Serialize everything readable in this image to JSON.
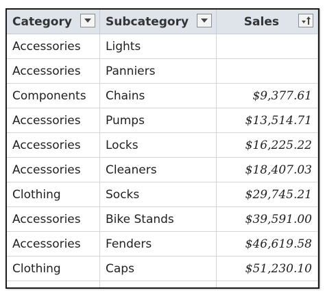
{
  "table": {
    "columns": [
      {
        "label": "Category",
        "control_icon": "filter-dropdown-icon"
      },
      {
        "label": "Subcategory",
        "control_icon": "filter-dropdown-icon"
      },
      {
        "label": "Sales",
        "control_icon": "sort-ascending-icon"
      }
    ],
    "rows": [
      {
        "category": "Accessories",
        "subcategory": "Lights",
        "sales": ""
      },
      {
        "category": "Accessories",
        "subcategory": "Panniers",
        "sales": ""
      },
      {
        "category": "Components",
        "subcategory": "Chains",
        "sales": "$9,377.61"
      },
      {
        "category": "Accessories",
        "subcategory": "Pumps",
        "sales": "$13,514.71"
      },
      {
        "category": "Accessories",
        "subcategory": "Locks",
        "sales": "$16,225.22"
      },
      {
        "category": "Accessories",
        "subcategory": "Cleaners",
        "sales": "$18,407.03"
      },
      {
        "category": "Clothing",
        "subcategory": "Socks",
        "sales": "$29,745.21"
      },
      {
        "category": "Accessories",
        "subcategory": "Bike Stands",
        "sales": "$39,591.00"
      },
      {
        "category": "Accessories",
        "subcategory": "Fenders",
        "sales": "$46,619.58"
      },
      {
        "category": "Clothing",
        "subcategory": "Caps",
        "sales": "$51,230.10"
      },
      {
        "category": "",
        "subcategory": "",
        "sales": ""
      }
    ]
  },
  "colors": {
    "header_bg": "#dee4ea",
    "gridline": "#d4d4d4",
    "frame_border": "#1a1a1a"
  }
}
